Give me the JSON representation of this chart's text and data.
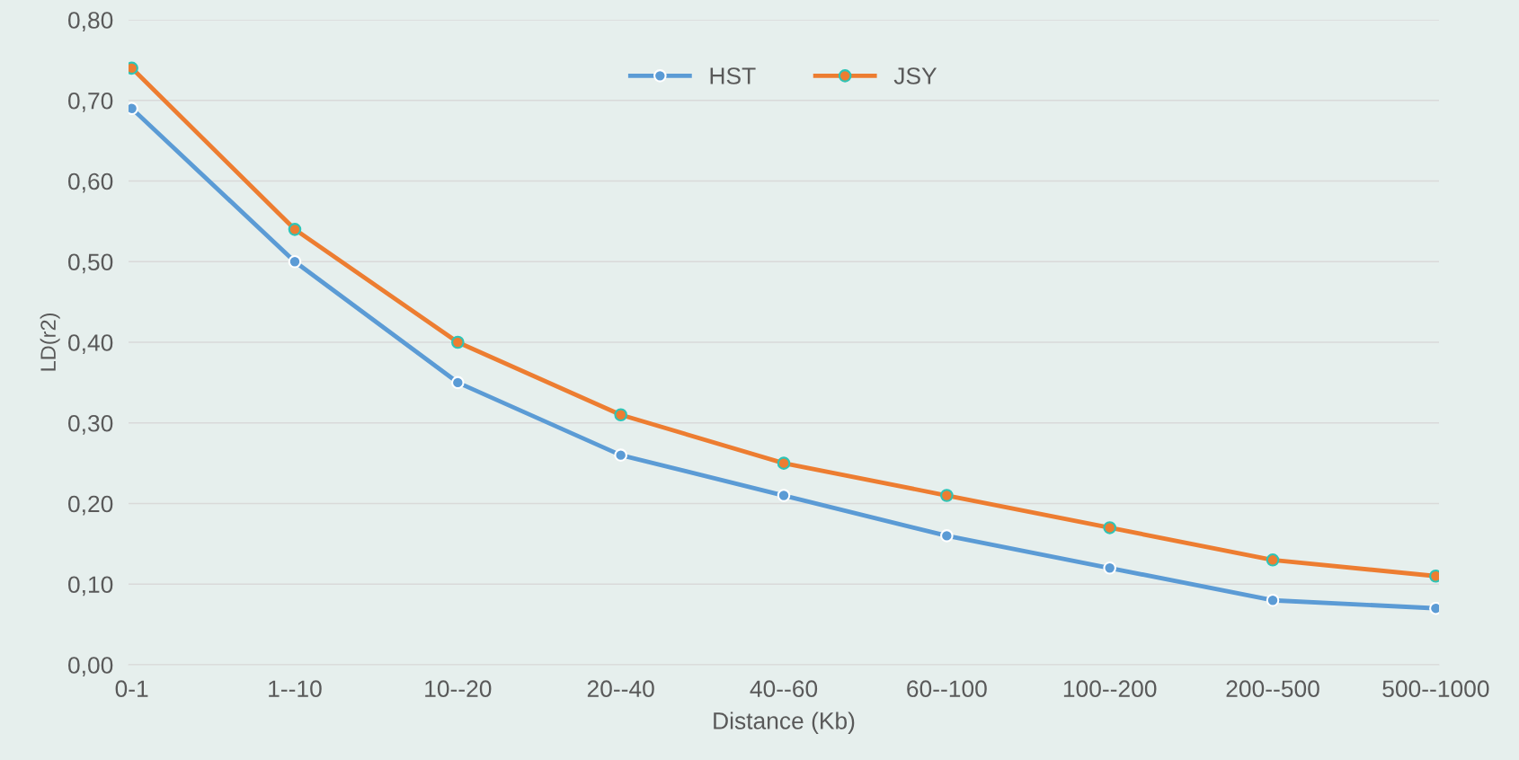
{
  "chart_data": {
    "type": "line",
    "xlabel": "Distance (Kb)",
    "ylabel": "LD(r2)",
    "categories": [
      "0-1",
      "1--10",
      "10--20",
      "20--40",
      "40--60",
      "60--100",
      "100--200",
      "200--500",
      "500--1000"
    ],
    "series": [
      {
        "name": "HST",
        "color": "#5b9bd5",
        "values": [
          0.69,
          0.5,
          0.35,
          0.26,
          0.21,
          0.16,
          0.12,
          0.08,
          0.07
        ]
      },
      {
        "name": "JSY",
        "color": "#ed7d31",
        "values": [
          0.74,
          0.54,
          0.4,
          0.31,
          0.25,
          0.21,
          0.17,
          0.13,
          0.11
        ]
      }
    ],
    "ylim": [
      0,
      0.8
    ],
    "yticks": [
      {
        "value": 0,
        "label": "0,00"
      },
      {
        "value": 0.1,
        "label": "0,10"
      },
      {
        "value": 0.2,
        "label": "0,20"
      },
      {
        "value": 0.3,
        "label": "0,30"
      },
      {
        "value": 0.4,
        "label": "0,40"
      },
      {
        "value": 0.5,
        "label": "0,50"
      },
      {
        "value": 0.6,
        "label": "0,60"
      },
      {
        "value": 0.7,
        "label": "0,70"
      },
      {
        "value": 0.8,
        "label": "0,80"
      }
    ],
    "grid": "y",
    "legend": "top",
    "marker": "circle",
    "line_style": "solid"
  }
}
